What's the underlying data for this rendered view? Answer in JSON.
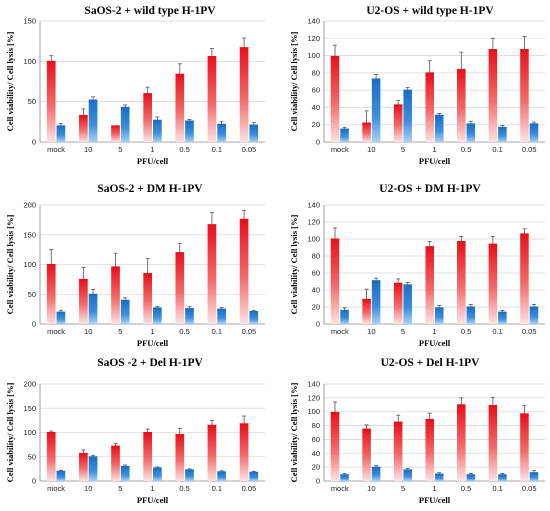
{
  "colors": {
    "viability": "#e8101a",
    "lysis": "#1a6fc4"
  },
  "chart_data": [
    {
      "type": "bar",
      "title": "SaOS-2 + wild type H-1PV",
      "xlabel": "PFU/cell",
      "ylabel": "Cell viability/ Cell lysis [%]",
      "ylim": [
        0,
        150
      ],
      "yticks": [
        0,
        50,
        100,
        150
      ],
      "categories": [
        "mock",
        "10",
        "5",
        "1",
        "0.5",
        "0.1",
        "0.05"
      ],
      "series": [
        {
          "values": [
            100,
            33,
            20,
            60,
            84,
            106,
            117
          ],
          "errors": [
            7,
            8,
            0,
            8,
            13,
            10,
            12
          ]
        },
        {
          "values": [
            20,
            52,
            43,
            27,
            26,
            22,
            21
          ],
          "errors": [
            3,
            4,
            3,
            4,
            2,
            3,
            3
          ]
        }
      ]
    },
    {
      "type": "bar",
      "title": "U2-OS + wild type H-1PV",
      "xlabel": "PFU/cell",
      "ylabel": "Cell viability/ Cell lysis [%]",
      "ylim": [
        0,
        140
      ],
      "yticks": [
        0,
        20,
        40,
        60,
        80,
        100,
        120,
        140
      ],
      "categories": [
        "mock",
        "10",
        "5",
        "1",
        "0.5",
        "0.1",
        "0.05"
      ],
      "series": [
        {
          "values": [
            99,
            22,
            43,
            80,
            84,
            107,
            107
          ],
          "errors": [
            13,
            14,
            5,
            14,
            20,
            13,
            15
          ]
        },
        {
          "values": [
            15,
            73,
            60,
            31,
            21,
            17,
            21
          ],
          "errors": [
            2,
            5,
            3,
            2,
            3,
            2,
            2
          ]
        }
      ]
    },
    {
      "type": "bar",
      "title": "SaOS-2 + DM H-1PV",
      "xlabel": "PFU/cell",
      "ylabel": "Cell viability/ Cell lysis [%]",
      "ylim": [
        0,
        200
      ],
      "yticks": [
        0,
        50,
        100,
        150,
        200
      ],
      "categories": [
        "mock",
        "10",
        "5",
        "1",
        "0.5",
        "0.1",
        "0.05"
      ],
      "series": [
        {
          "values": [
            100,
            75,
            96,
            85,
            120,
            167,
            176
          ],
          "errors": [
            25,
            20,
            23,
            25,
            15,
            20,
            15
          ]
        },
        {
          "values": [
            20,
            50,
            40,
            27,
            26,
            25,
            21
          ],
          "errors": [
            3,
            8,
            4,
            2,
            3,
            3,
            2
          ]
        }
      ]
    },
    {
      "type": "bar",
      "title": "U2-OS + DM H-1PV",
      "xlabel": "PFU/cell",
      "ylabel": "Cell viability/ Cell lysis [%]",
      "ylim": [
        0,
        140
      ],
      "yticks": [
        0,
        20,
        40,
        60,
        80,
        100,
        120,
        140
      ],
      "categories": [
        "mock",
        "10",
        "5",
        "1",
        "0.5",
        "0.1",
        "0.05"
      ],
      "series": [
        {
          "values": [
            100,
            29,
            48,
            91,
            97,
            94,
            106
          ],
          "errors": [
            13,
            12,
            5,
            6,
            6,
            9,
            6
          ]
        },
        {
          "values": [
            16,
            51,
            46,
            19,
            20,
            14,
            20
          ],
          "errors": [
            3,
            3,
            3,
            3,
            3,
            2,
            3
          ]
        }
      ]
    },
    {
      "type": "bar",
      "title": "SaOS -2 + Del H-1PV",
      "xlabel": "PFU/cell",
      "ylabel": "Cell viability/ Cell lysis [%]",
      "ylim": [
        0,
        200
      ],
      "yticks": [
        0,
        50,
        100,
        150,
        200
      ],
      "categories": [
        "mock",
        "10",
        "5",
        "1",
        "0.5",
        "0.1",
        "0.05"
      ],
      "series": [
        {
          "values": [
            100,
            57,
            72,
            100,
            96,
            115,
            118
          ],
          "errors": [
            3,
            7,
            5,
            7,
            12,
            10,
            16
          ]
        },
        {
          "values": [
            20,
            50,
            30,
            27,
            23,
            19,
            18
          ],
          "errors": [
            2,
            3,
            3,
            2,
            2,
            2,
            2
          ]
        }
      ]
    },
    {
      "type": "bar",
      "title": "U2-OS + Del H-1PV",
      "xlabel": "PFU/cell",
      "ylabel": "Cell viability/ Cell lysis [%]",
      "ylim": [
        0,
        140
      ],
      "yticks": [
        0,
        20,
        40,
        60,
        80,
        100,
        120,
        140
      ],
      "categories": [
        "mock",
        "10",
        "5",
        "1",
        "0.5",
        "0.1",
        "0.05"
      ],
      "series": [
        {
          "values": [
            99,
            75,
            85,
            89,
            110,
            109,
            97
          ],
          "errors": [
            15,
            6,
            10,
            9,
            10,
            12,
            12
          ]
        },
        {
          "values": [
            9,
            20,
            16,
            10,
            9,
            9,
            12
          ],
          "errors": [
            2,
            2,
            2,
            2,
            2,
            2,
            3
          ]
        }
      ]
    }
  ]
}
